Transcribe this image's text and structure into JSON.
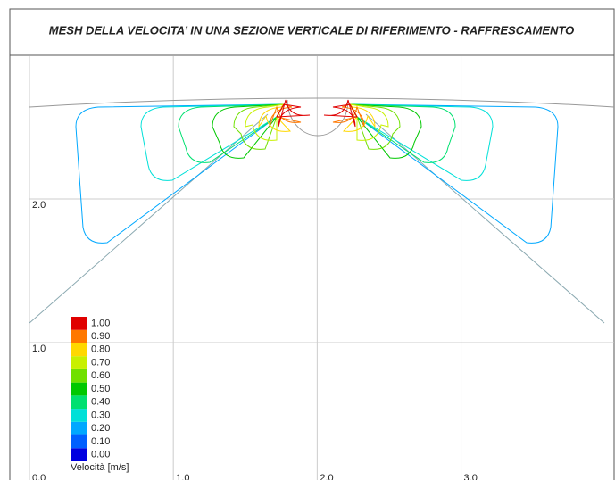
{
  "chart_data": {
    "type": "contour",
    "title": "MESH DELLA VELOCITA’ IN UNA SEZIONE VERTICALE DI RIFERIMENTO - RAFFRESCAMENTO",
    "xlim": [
      0,
      4.07
    ],
    "ylim": [
      0,
      3.0
    ],
    "xticks": [
      {
        "value": 0,
        "label": "0.0"
      },
      {
        "value": 1,
        "label": "1.0"
      },
      {
        "value": 2,
        "label": "2.0"
      },
      {
        "value": 3,
        "label": "3.0"
      }
    ],
    "yticks": [
      {
        "value": 1,
        "label": "1.0"
      },
      {
        "value": 2,
        "label": "2.0"
      }
    ],
    "grid": true,
    "colorbar": {
      "title": "Velocità [m/s]",
      "levels": [
        {
          "value": 0,
          "label": "0.00"
        },
        {
          "value": 0.1,
          "label": "0.10"
        },
        {
          "value": 0.2,
          "label": "0.20"
        },
        {
          "value": 0.3,
          "label": "0.30"
        },
        {
          "value": 0.4,
          "label": "0.40"
        },
        {
          "value": 0.5,
          "label": "0.50"
        },
        {
          "value": 0.6,
          "label": "0.60"
        },
        {
          "value": 0.7,
          "label": "0.70"
        },
        {
          "value": 0.8,
          "label": "0.80"
        },
        {
          "value": 0.9,
          "label": "0.90"
        },
        {
          "value": 1.0,
          "label": "1.00"
        }
      ],
      "colors": [
        "#0000e0",
        "#0060ff",
        "#00a8ff",
        "#00e0d8",
        "#00e070",
        "#00c800",
        "#70e000",
        "#c8f000",
        "#ffd800",
        "#ff7800",
        "#e00000"
      ]
    }
  }
}
